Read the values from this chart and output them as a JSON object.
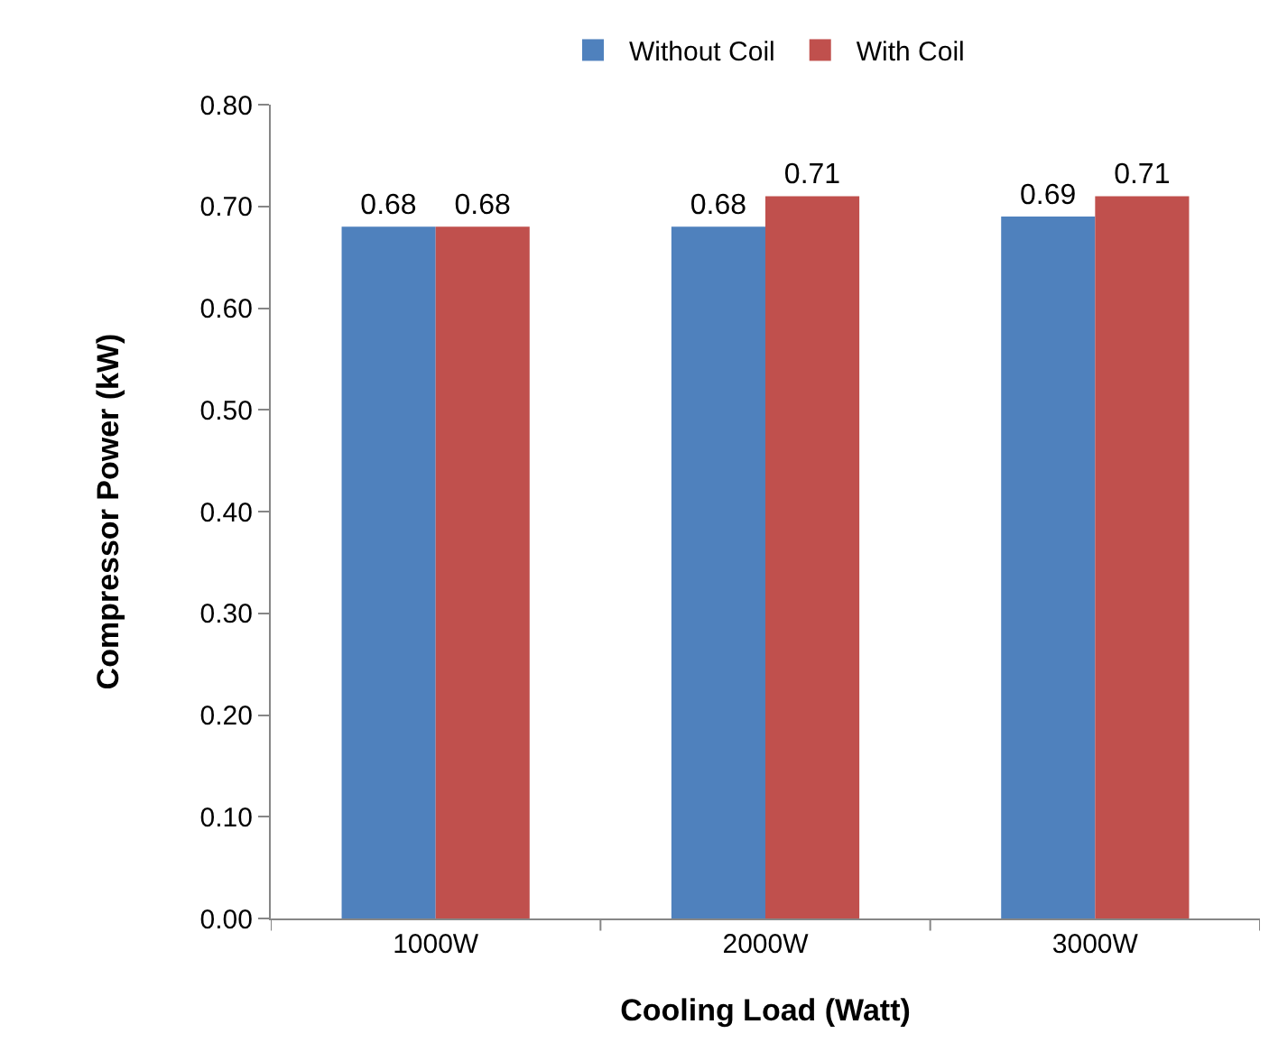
{
  "chart_data": {
    "type": "bar",
    "xlabel": "Cooling Load (Watt)",
    "ylabel": "Compressor Power (kW)",
    "categories": [
      "1000W",
      "2000W",
      "3000W"
    ],
    "series": [
      {
        "name": "Without Coil",
        "color": "#4f81bd",
        "values": [
          0.68,
          0.68,
          0.69
        ]
      },
      {
        "name": "With Coil",
        "color": "#c0504d",
        "values": [
          0.68,
          0.71,
          0.71
        ]
      }
    ],
    "ylim": [
      0,
      0.8
    ],
    "yticks": [
      {
        "value": 0,
        "label": "0.00"
      },
      {
        "value": 0.1,
        "label": "0.10"
      },
      {
        "value": 0.2,
        "label": "0.20"
      },
      {
        "value": 0.3,
        "label": "0.30"
      },
      {
        "value": 0.4,
        "label": "0.40"
      },
      {
        "value": 0.5,
        "label": "0.50"
      },
      {
        "value": 0.6,
        "label": "0.60"
      },
      {
        "value": 0.7,
        "label": "0.70"
      },
      {
        "value": 0.8,
        "label": "0.80"
      }
    ],
    "data_labels": true,
    "grid": false,
    "legend": "top"
  }
}
